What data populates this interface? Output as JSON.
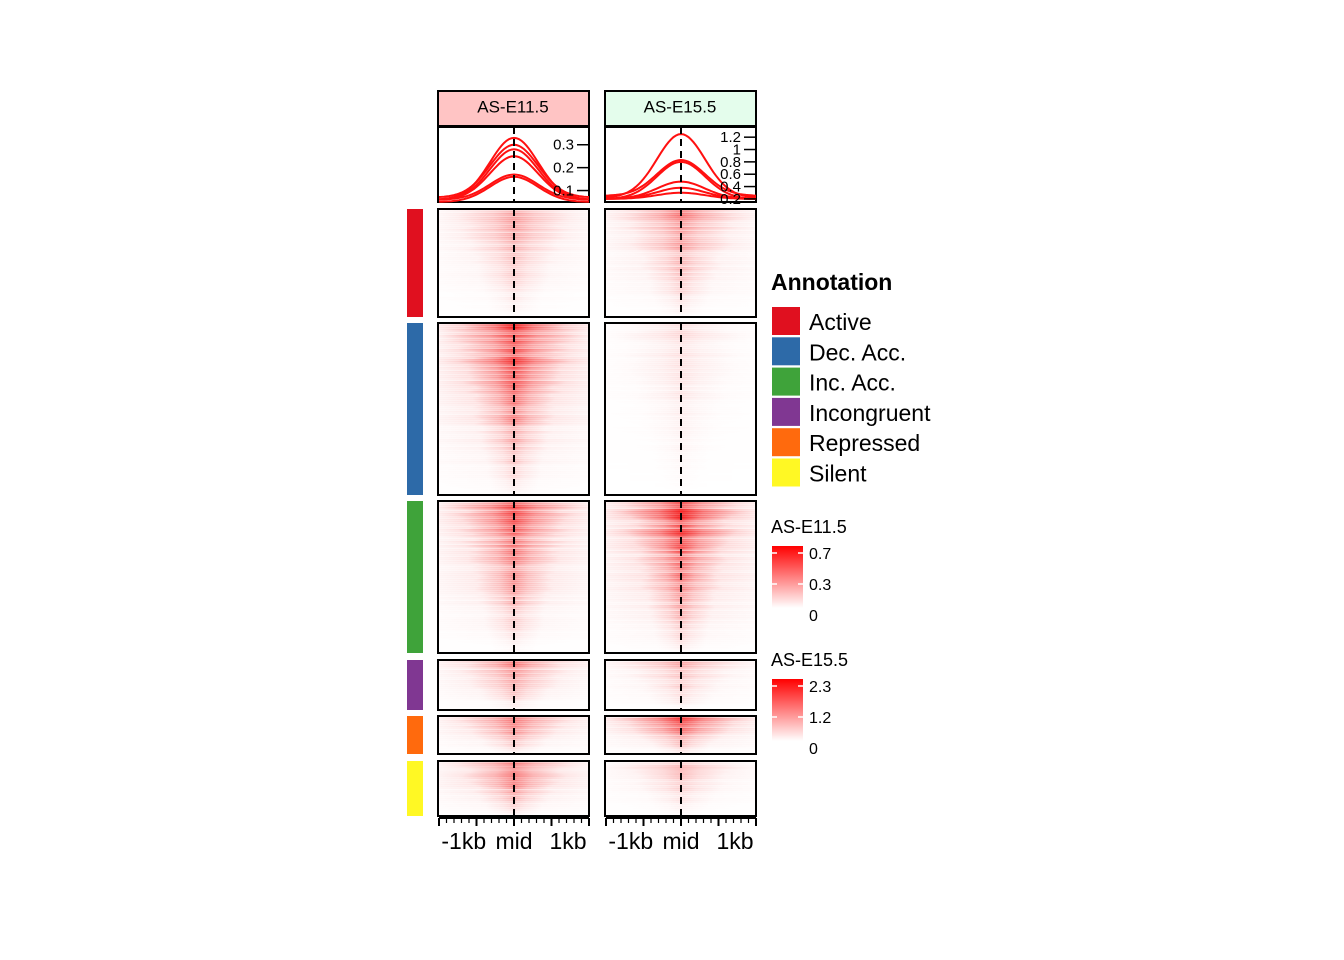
{
  "chart_data": {
    "type": "heatmap",
    "subtype": "enriched-heatmap",
    "columns": [
      {
        "name": "AS-E11.5",
        "header_color": "#ffc4c4",
        "profile_ticks": [
          "0.3",
          "0.2",
          "0.1"
        ],
        "profile_ylim": [
          0.05,
          0.36
        ],
        "profiles": [
          {
            "group": "Active",
            "peak": 0.33,
            "edge": 0.06
          },
          {
            "group": "Dec. Acc.",
            "peak": 0.3,
            "edge": 0.07
          },
          {
            "group": "Inc. Acc.",
            "peak": 0.28,
            "edge": 0.06
          },
          {
            "group": "Incongruent",
            "peak": 0.25,
            "edge": 0.06
          },
          {
            "group": "Repressed",
            "peak": 0.17,
            "edge": 0.06
          },
          {
            "group": "Silent",
            "peak": 0.16,
            "edge": 0.05
          }
        ],
        "legend_title": "AS-E11.5",
        "legend_ticks": [
          "0.7",
          "0.3",
          "0"
        ],
        "legend_color": "#ff0000"
      },
      {
        "name": "AS-E15.5",
        "header_color": "#e4fdec",
        "profile_ticks": [
          "1.2",
          "1",
          "0.8",
          "0.6",
          "0.4",
          "0.2"
        ],
        "profile_ylim": [
          0.15,
          1.3
        ],
        "profiles": [
          {
            "group": "Inc. Acc.",
            "peak": 1.25,
            "edge": 0.22
          },
          {
            "group": "Active",
            "peak": 0.83,
            "edge": 0.25
          },
          {
            "group": "Repressed",
            "peak": 0.8,
            "edge": 0.2
          },
          {
            "group": "Incongruent",
            "peak": 0.48,
            "edge": 0.2
          },
          {
            "group": "Silent",
            "peak": 0.38,
            "edge": 0.2
          },
          {
            "group": "Dec. Acc.",
            "peak": 0.3,
            "edge": 0.2
          }
        ],
        "legend_title": "AS-E15.5",
        "legend_ticks": [
          "2.3",
          "1.2",
          "0"
        ],
        "legend_color": "#ff0000"
      }
    ],
    "x_tick_labels": [
      "-1kb",
      "mid",
      "1kb"
    ],
    "x_range_bp": [
      -2000,
      2000
    ],
    "groups": [
      {
        "name": "Active",
        "color": "#e0101f",
        "rows": 105,
        "intensity": [
          0.35,
          0.45
        ]
      },
      {
        "name": "Dec. Acc.",
        "color": "#2d6aa8",
        "rows": 170,
        "intensity": [
          0.8,
          0.12
        ]
      },
      {
        "name": "Inc. Acc.",
        "color": "#3fa33a",
        "rows": 150,
        "intensity": [
          0.65,
          0.85
        ]
      },
      {
        "name": "Incongruent",
        "color": "#803792",
        "rows": 50,
        "intensity": [
          0.45,
          0.3
        ]
      },
      {
        "name": "Repressed",
        "color": "#ff6a0d",
        "rows": 37,
        "intensity": [
          0.55,
          0.7
        ]
      },
      {
        "name": "Silent",
        "color": "#fff824",
        "rows": 53,
        "intensity": [
          0.6,
          0.25
        ]
      }
    ],
    "annotation_legend_title": "Annotation"
  }
}
